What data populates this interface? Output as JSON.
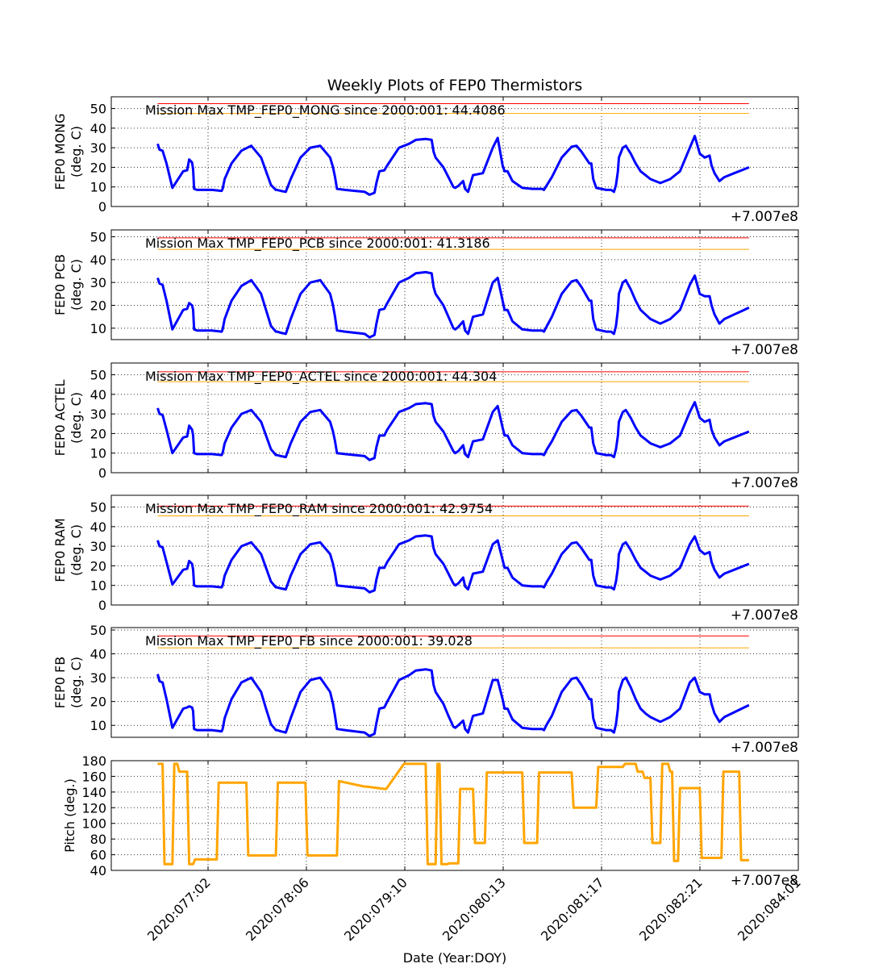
{
  "figure": {
    "title": "Weekly Plots of FEP0 Thermistors",
    "xlabel": "Date (Year:DOY)",
    "offset_label": "+7.007e8",
    "x_ticks": [
      "2020:077:02",
      "2020:078:06",
      "2020:079:10",
      "2020:080:13",
      "2020:081:17",
      "2020:082:21",
      "2020:084:01"
    ]
  },
  "colors": {
    "data_line": "#0000ff",
    "red_limit": "#ff0000",
    "yellow_limit": "#ffa500",
    "pitch": "#ffa500",
    "grid": "#000000"
  },
  "chart_data": [
    {
      "type": "line",
      "ylabel": "FEP0 MONG",
      "yunit": "(deg. C)",
      "annotation": "Mission Max TMP_FEP0_MONG since 2000:001: 44.4086",
      "ylim": [
        0,
        56
      ],
      "yticks": [
        0,
        10,
        20,
        30,
        40,
        50
      ],
      "red_limit": 52.5,
      "yellow_limit": 47.5,
      "x": [
        0,
        0.02,
        0.05,
        0.09,
        0.15,
        0.26,
        0.3,
        0.32,
        0.35,
        0.36,
        0.37,
        0.4,
        0.55,
        0.65,
        0.66,
        0.68,
        0.75,
        0.85,
        0.95,
        1.05,
        1.1,
        1.15,
        1.2,
        1.21,
        1.25,
        1.3,
        1.35,
        1.45,
        1.55,
        1.65,
        1.75,
        1.78,
        1.8,
        1.82,
        1.9,
        2.0,
        2.1,
        2.15,
        2.2,
        2.22,
        2.25,
        2.3,
        2.33,
        2.45,
        2.55,
        2.62,
        2.72,
        2.78,
        2.8,
        2.82,
        2.9,
        2.95,
        3.0,
        3.02,
        3.05,
        3.1,
        3.12,
        3.15,
        3.2,
        3.3,
        3.4,
        3.45,
        3.5,
        3.52,
        3.55,
        3.6,
        3.7,
        3.8,
        3.9,
        3.92,
        3.95,
        4.0,
        4.05,
        4.1,
        4.2,
        4.25,
        4.3,
        4.38,
        4.4,
        4.42,
        4.45,
        4.5,
        4.55,
        4.6,
        4.63,
        4.65,
        4.67,
        4.68,
        4.72,
        4.75,
        4.8,
        4.85,
        4.9,
        4.95,
        5.0,
        5.1,
        5.2,
        5.3,
        5.4,
        5.45,
        5.5,
        5.55,
        5.6,
        5.62,
        5.65,
        5.7,
        5.75,
        5.85,
        5.95,
        6.0
      ],
      "values": [
        32,
        29,
        28.5,
        22,
        9.5,
        18,
        18.5,
        24,
        22.5,
        19,
        9,
        8.5,
        8.5,
        8,
        9,
        14,
        22,
        28.5,
        31,
        25,
        18,
        11,
        8.5,
        8.5,
        8,
        7.5,
        14,
        25,
        30,
        31,
        25,
        20,
        15,
        9,
        8.5,
        8,
        7.5,
        6,
        7,
        12,
        18,
        18.5,
        21,
        30,
        32,
        34,
        34.5,
        34,
        28,
        25,
        20,
        15,
        10,
        9.5,
        10.5,
        13,
        9,
        7.5,
        16,
        17,
        30,
        35,
        21,
        18,
        18,
        13,
        9.5,
        9,
        9,
        8.5,
        11,
        15,
        20,
        25,
        30.5,
        31,
        28,
        22,
        22,
        14,
        9.5,
        9,
        8.5,
        8.5,
        7.5,
        11,
        18,
        25,
        30,
        31,
        27,
        22,
        18,
        16,
        14,
        12,
        14,
        18,
        30,
        36,
        27,
        25,
        26,
        21,
        17,
        13,
        15,
        17,
        19,
        20
      ]
    },
    {
      "type": "line",
      "ylabel": "FEP0 PCB",
      "yunit": "(deg. C)",
      "annotation": "Mission Max TMP_FEP0_PCB since 2000:001: 41.3186",
      "ylim": [
        5,
        53
      ],
      "yticks": [
        10,
        20,
        30,
        40,
        50
      ],
      "red_limit": 49.5,
      "yellow_limit": 44.5,
      "x": [
        0,
        0.02,
        0.05,
        0.09,
        0.15,
        0.26,
        0.3,
        0.32,
        0.35,
        0.36,
        0.37,
        0.4,
        0.55,
        0.65,
        0.66,
        0.68,
        0.75,
        0.85,
        0.95,
        1.05,
        1.1,
        1.15,
        1.2,
        1.21,
        1.25,
        1.3,
        1.35,
        1.45,
        1.55,
        1.65,
        1.75,
        1.78,
        1.8,
        1.82,
        1.9,
        2.0,
        2.1,
        2.15,
        2.2,
        2.22,
        2.25,
        2.3,
        2.33,
        2.45,
        2.55,
        2.62,
        2.72,
        2.78,
        2.8,
        2.82,
        2.9,
        2.95,
        3.0,
        3.02,
        3.05,
        3.1,
        3.12,
        3.15,
        3.2,
        3.3,
        3.4,
        3.45,
        3.5,
        3.52,
        3.55,
        3.6,
        3.7,
        3.8,
        3.9,
        3.92,
        3.95,
        4.0,
        4.05,
        4.1,
        4.2,
        4.25,
        4.3,
        4.38,
        4.4,
        4.42,
        4.45,
        4.5,
        4.55,
        4.6,
        4.63,
        4.65,
        4.67,
        4.68,
        4.72,
        4.75,
        4.8,
        4.85,
        4.9,
        4.95,
        5.0,
        5.1,
        5.2,
        5.3,
        5.4,
        5.45,
        5.5,
        5.55,
        5.6,
        5.62,
        5.65,
        5.7,
        5.75,
        5.85,
        5.95,
        6.0
      ],
      "values": [
        32,
        29.5,
        29,
        22,
        9.5,
        18,
        18.5,
        21,
        20,
        18,
        9.5,
        9,
        9,
        8.5,
        9.5,
        14,
        22,
        28.5,
        31,
        25,
        18,
        11,
        8.5,
        8.5,
        8,
        7.5,
        14,
        25,
        30,
        31,
        25,
        20,
        15,
        9,
        8.5,
        8,
        7.5,
        6,
        7,
        12,
        18,
        18.5,
        21,
        30,
        32,
        34,
        34.5,
        34,
        28,
        25,
        20,
        15,
        10,
        9.5,
        10.5,
        13,
        9,
        7.5,
        15,
        16,
        30,
        32,
        22,
        18,
        18,
        13,
        9.5,
        9,
        9,
        8.5,
        11,
        15,
        20,
        25,
        30.5,
        31,
        28,
        22,
        22,
        14,
        9.5,
        9,
        8.5,
        8.5,
        7.5,
        11,
        18,
        25,
        30,
        31,
        27,
        22,
        18,
        16,
        14,
        12,
        14,
        18,
        29,
        33,
        25,
        24,
        24,
        20,
        16,
        12,
        14,
        16,
        18,
        19
      ]
    },
    {
      "type": "line",
      "ylabel": "FEP0 ACTEL",
      "yunit": "(deg. C)",
      "annotation": "Mission Max TMP_FEP0_ACTEL since 2000:001: 44.304",
      "ylim": [
        0,
        56
      ],
      "yticks": [
        0,
        10,
        20,
        30,
        40,
        50
      ],
      "red_limit": 51.5,
      "yellow_limit": 46.5,
      "x": [
        0,
        0.02,
        0.05,
        0.09,
        0.15,
        0.26,
        0.3,
        0.32,
        0.35,
        0.36,
        0.37,
        0.4,
        0.55,
        0.65,
        0.66,
        0.68,
        0.75,
        0.85,
        0.95,
        1.05,
        1.1,
        1.15,
        1.2,
        1.21,
        1.25,
        1.3,
        1.35,
        1.45,
        1.55,
        1.65,
        1.75,
        1.78,
        1.8,
        1.82,
        1.9,
        2.0,
        2.1,
        2.15,
        2.2,
        2.22,
        2.25,
        2.3,
        2.33,
        2.45,
        2.55,
        2.62,
        2.72,
        2.78,
        2.8,
        2.82,
        2.9,
        2.95,
        3.0,
        3.02,
        3.05,
        3.1,
        3.12,
        3.15,
        3.2,
        3.3,
        3.4,
        3.45,
        3.5,
        3.52,
        3.55,
        3.6,
        3.7,
        3.8,
        3.9,
        3.92,
        3.95,
        4.0,
        4.05,
        4.1,
        4.2,
        4.25,
        4.3,
        4.38,
        4.4,
        4.42,
        4.45,
        4.5,
        4.55,
        4.6,
        4.63,
        4.65,
        4.67,
        4.68,
        4.72,
        4.75,
        4.8,
        4.85,
        4.9,
        4.95,
        5.0,
        5.1,
        5.2,
        5.3,
        5.4,
        5.45,
        5.5,
        5.55,
        5.6,
        5.62,
        5.65,
        5.7,
        5.75,
        5.85,
        5.95,
        6.0
      ],
      "values": [
        33,
        30,
        29.5,
        22,
        10,
        18,
        18.5,
        24,
        22,
        19,
        10,
        9.5,
        9.5,
        9,
        10,
        15,
        23,
        30,
        32,
        26,
        19,
        12,
        9,
        9,
        8.5,
        8,
        15,
        26,
        31,
        32,
        26,
        21,
        16,
        10,
        9.5,
        9,
        8.5,
        6.5,
        7.5,
        13,
        19,
        19,
        22,
        31,
        33,
        35,
        35.5,
        35,
        29,
        26,
        21,
        16,
        11,
        10,
        11,
        14,
        9.5,
        8,
        16,
        17,
        31,
        34,
        23,
        19,
        19,
        14,
        10,
        9.5,
        9.5,
        9,
        12,
        16,
        21,
        26,
        31.5,
        32,
        29,
        23,
        23,
        15,
        10,
        9.5,
        9,
        9,
        8,
        12,
        19,
        26,
        31,
        32,
        28,
        23,
        19,
        17,
        15,
        13,
        15,
        19,
        31,
        36,
        28,
        26,
        27,
        22,
        18,
        14,
        16,
        18,
        20,
        21
      ]
    },
    {
      "type": "line",
      "ylabel": "FEP0 RAM",
      "yunit": "(deg. C)",
      "annotation": "Mission Max TMP_FEP0_RAM since 2000:001: 42.9754",
      "ylim": [
        0,
        56
      ],
      "yticks": [
        0,
        10,
        20,
        30,
        40,
        50
      ],
      "red_limit": 50.5,
      "yellow_limit": 45.5,
      "x": [
        0,
        0.02,
        0.05,
        0.09,
        0.15,
        0.26,
        0.3,
        0.32,
        0.35,
        0.36,
        0.37,
        0.4,
        0.55,
        0.65,
        0.66,
        0.68,
        0.75,
        0.85,
        0.95,
        1.05,
        1.1,
        1.15,
        1.2,
        1.21,
        1.25,
        1.3,
        1.35,
        1.45,
        1.55,
        1.65,
        1.75,
        1.78,
        1.8,
        1.82,
        1.9,
        2.0,
        2.1,
        2.15,
        2.2,
        2.22,
        2.25,
        2.3,
        2.33,
        2.45,
        2.55,
        2.62,
        2.72,
        2.78,
        2.8,
        2.82,
        2.9,
        2.95,
        3.0,
        3.02,
        3.05,
        3.1,
        3.12,
        3.15,
        3.2,
        3.3,
        3.4,
        3.45,
        3.5,
        3.52,
        3.55,
        3.6,
        3.7,
        3.8,
        3.9,
        3.92,
        3.95,
        4.0,
        4.05,
        4.1,
        4.2,
        4.25,
        4.3,
        4.38,
        4.4,
        4.42,
        4.45,
        4.5,
        4.55,
        4.6,
        4.63,
        4.65,
        4.67,
        4.68,
        4.72,
        4.75,
        4.8,
        4.85,
        4.9,
        4.95,
        5.0,
        5.1,
        5.2,
        5.3,
        5.4,
        5.45,
        5.5,
        5.55,
        5.6,
        5.62,
        5.65,
        5.7,
        5.75,
        5.85,
        5.95,
        6.0
      ],
      "values": [
        33,
        30,
        29.5,
        22,
        10.5,
        18,
        18.5,
        22.5,
        21,
        18,
        10,
        9.5,
        9.5,
        9,
        10,
        15,
        23,
        30,
        32,
        26,
        19,
        12,
        9,
        9,
        8.5,
        8,
        15,
        26,
        31,
        32,
        26,
        21,
        16,
        10,
        9.5,
        9,
        8.5,
        6.5,
        7.5,
        13,
        19,
        19,
        22,
        31,
        33,
        35,
        35.5,
        35,
        29,
        26,
        21,
        16,
        11,
        10,
        11,
        14,
        9.5,
        8,
        16,
        17,
        31,
        33,
        23,
        19,
        19,
        14,
        10,
        9.5,
        9.5,
        9,
        12,
        16,
        21,
        26,
        31.5,
        32,
        29,
        23,
        23,
        15,
        10,
        9.5,
        9,
        9,
        8,
        12,
        19,
        26,
        31,
        32,
        28,
        23,
        19,
        17,
        15,
        13,
        15,
        19,
        31,
        35,
        28,
        26,
        27,
        22,
        18,
        14,
        16,
        18,
        20,
        21
      ]
    },
    {
      "type": "line",
      "ylabel": "FEP0 FB",
      "yunit": "(deg. C)",
      "annotation": "Mission Max TMP_FEP0_FB since 2000:001: 39.028",
      "ylim": [
        5,
        51
      ],
      "yticks": [
        10,
        20,
        30,
        40,
        50
      ],
      "red_limit": 47.5,
      "yellow_limit": 42.5,
      "x": [
        0,
        0.02,
        0.05,
        0.09,
        0.15,
        0.26,
        0.3,
        0.32,
        0.35,
        0.36,
        0.37,
        0.4,
        0.55,
        0.65,
        0.66,
        0.68,
        0.75,
        0.85,
        0.95,
        1.05,
        1.1,
        1.15,
        1.2,
        1.21,
        1.25,
        1.3,
        1.35,
        1.45,
        1.55,
        1.65,
        1.75,
        1.78,
        1.8,
        1.82,
        1.9,
        2.0,
        2.1,
        2.15,
        2.2,
        2.22,
        2.25,
        2.3,
        2.33,
        2.45,
        2.55,
        2.62,
        2.72,
        2.78,
        2.8,
        2.82,
        2.9,
        2.95,
        3.0,
        3.02,
        3.05,
        3.1,
        3.12,
        3.15,
        3.2,
        3.3,
        3.4,
        3.45,
        3.5,
        3.52,
        3.55,
        3.6,
        3.7,
        3.8,
        3.9,
        3.92,
        3.95,
        4.0,
        4.05,
        4.1,
        4.2,
        4.25,
        4.3,
        4.38,
        4.4,
        4.42,
        4.45,
        4.5,
        4.55,
        4.6,
        4.63,
        4.65,
        4.67,
        4.68,
        4.72,
        4.75,
        4.8,
        4.85,
        4.9,
        4.95,
        5.0,
        5.1,
        5.2,
        5.3,
        5.4,
        5.45,
        5.5,
        5.55,
        5.6,
        5.62,
        5.65,
        5.7,
        5.75,
        5.85,
        5.95,
        6.0
      ],
      "values": [
        31.5,
        28.5,
        28,
        21,
        9,
        17,
        17.5,
        18,
        17.5,
        16,
        8.5,
        8,
        8,
        7.5,
        8.5,
        13,
        21,
        28,
        30,
        24,
        17,
        10.5,
        8,
        8,
        7.5,
        7,
        13,
        24,
        29,
        30,
        24,
        19,
        14,
        8.5,
        8,
        7.5,
        7,
        5.5,
        6.5,
        11,
        17,
        17.5,
        20,
        29,
        31,
        33,
        33.5,
        33,
        27,
        24,
        19,
        14,
        9.5,
        9,
        10,
        12,
        8.5,
        7,
        14,
        15,
        29,
        29,
        21,
        17,
        17,
        12.5,
        9,
        8.5,
        8.5,
        8,
        10.5,
        14,
        19,
        24,
        29.5,
        30,
        27,
        21,
        21,
        13,
        9,
        8.5,
        8,
        8,
        7,
        10.5,
        17,
        24,
        29,
        30,
        26,
        21,
        17,
        15,
        13.5,
        11.5,
        13.5,
        17,
        28,
        30,
        24,
        23,
        23,
        19,
        15,
        11.5,
        13.5,
        15.5,
        17.5,
        18.5
      ]
    },
    {
      "type": "line",
      "ylabel": "Pitch (deg.)",
      "yunit": "",
      "annotation": "",
      "ylim": [
        40,
        180
      ],
      "yticks": [
        40,
        60,
        80,
        100,
        120,
        140,
        160,
        180
      ],
      "x": [
        0,
        0.05,
        0.07,
        0.15,
        0.17,
        0.2,
        0.22,
        0.3,
        0.32,
        0.36,
        0.38,
        0.6,
        0.62,
        0.9,
        0.92,
        1.2,
        1.22,
        1.5,
        1.52,
        1.82,
        1.84,
        2.1,
        2.12,
        2.3,
        2.32,
        2.5,
        2.52,
        2.72,
        2.74,
        2.82,
        2.84,
        2.86,
        2.88,
        2.94,
        2.96,
        3.05,
        3.07,
        3.2,
        3.22,
        3.32,
        3.34,
        3.7,
        3.72,
        3.85,
        3.87,
        4.2,
        4.22,
        4.45,
        4.47,
        4.72,
        4.74,
        4.85,
        4.87,
        4.92,
        4.94,
        5.0,
        5.02,
        5.1,
        5.12,
        5.18,
        5.2,
        5.22,
        5.24,
        5.28,
        5.3,
        5.5,
        5.52,
        5.72,
        5.74,
        5.9,
        5.92,
        6.0
      ],
      "values": [
        176,
        176,
        48,
        48,
        176,
        176,
        166,
        166,
        48,
        48,
        54,
        54,
        152,
        152,
        59,
        59,
        152,
        152,
        59,
        59,
        154,
        147,
        147,
        144,
        144,
        176,
        176,
        176,
        48,
        48,
        176,
        176,
        48,
        48,
        49,
        49,
        144,
        144,
        75,
        75,
        165,
        165,
        75,
        75,
        165,
        165,
        120,
        120,
        172,
        172,
        176,
        176,
        166,
        166,
        158,
        158,
        75,
        75,
        176,
        176,
        166,
        166,
        52,
        52,
        145,
        145,
        56,
        56,
        166,
        166,
        53,
        53
      ]
    }
  ]
}
